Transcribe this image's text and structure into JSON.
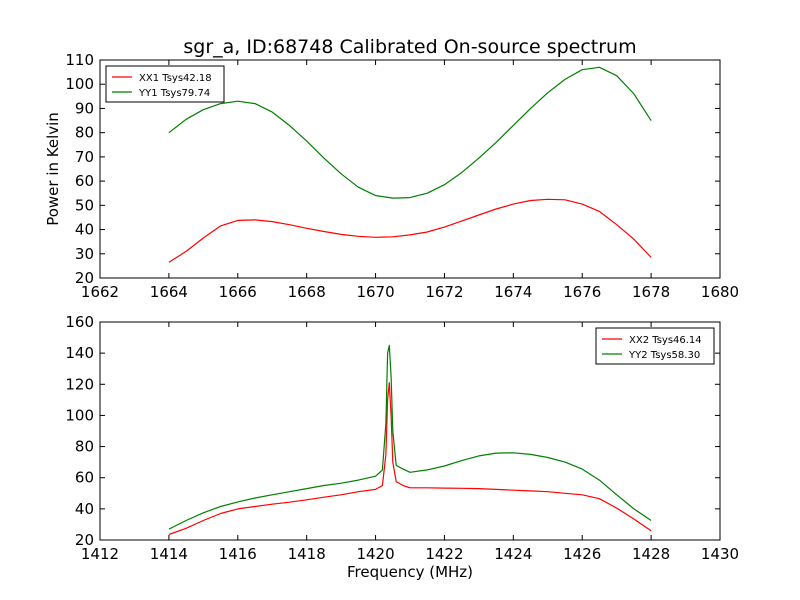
{
  "chart_data": [
    {
      "type": "line",
      "title": "sgr_a, ID:68748 Calibrated On-source spectrum",
      "xlabel": "",
      "ylabel": "Power in Kelvin",
      "xlim": [
        1662,
        1680
      ],
      "ylim": [
        20,
        110
      ],
      "xticks": [
        "1662",
        "1664",
        "1666",
        "1668",
        "1670",
        "1672",
        "1674",
        "1676",
        "1678",
        "1680"
      ],
      "yticks": [
        "20",
        "30",
        "40",
        "50",
        "60",
        "70",
        "80",
        "90",
        "100",
        "110"
      ],
      "legend_position": "top-left",
      "grid": false,
      "series": [
        {
          "name": "XX1 Tsys42.18",
          "color": "#ff0000",
          "x": [
            1664.0,
            1664.5,
            1665.0,
            1665.5,
            1666.0,
            1666.5,
            1667.0,
            1667.5,
            1668.0,
            1668.5,
            1669.0,
            1669.5,
            1670.0,
            1670.5,
            1671.0,
            1671.5,
            1672.0,
            1672.5,
            1673.0,
            1673.5,
            1674.0,
            1674.5,
            1675.0,
            1675.5,
            1676.0,
            1676.5,
            1677.0,
            1677.5,
            1678.0
          ],
          "y": [
            26.5,
            31.0,
            36.5,
            41.5,
            43.8,
            44.0,
            43.3,
            42.0,
            40.5,
            39.2,
            38.0,
            37.2,
            36.8,
            37.0,
            37.8,
            39.0,
            41.0,
            43.5,
            46.0,
            48.5,
            50.5,
            52.0,
            52.5,
            52.3,
            50.5,
            47.5,
            42.0,
            36.0,
            28.5
          ]
        },
        {
          "name": "YY1 Tsys79.74",
          "color": "#008000",
          "x": [
            1664.0,
            1664.5,
            1665.0,
            1665.5,
            1666.0,
            1666.5,
            1667.0,
            1667.5,
            1668.0,
            1668.5,
            1669.0,
            1669.5,
            1670.0,
            1670.5,
            1671.0,
            1671.5,
            1672.0,
            1672.5,
            1673.0,
            1673.5,
            1674.0,
            1674.5,
            1675.0,
            1675.5,
            1676.0,
            1676.5,
            1677.0,
            1677.5,
            1678.0
          ],
          "y": [
            80.0,
            85.5,
            89.5,
            92.0,
            93.0,
            92.0,
            88.5,
            83.0,
            76.5,
            69.5,
            63.0,
            57.5,
            54.0,
            53.0,
            53.2,
            55.0,
            58.5,
            63.5,
            69.5,
            76.0,
            83.0,
            90.0,
            96.5,
            102.0,
            106.0,
            107.0,
            103.5,
            96.0,
            85.0
          ]
        }
      ]
    },
    {
      "type": "line",
      "title": "",
      "xlabel": "Frequency (MHz)",
      "ylabel": "",
      "xlim": [
        1412,
        1430
      ],
      "ylim": [
        20,
        160
      ],
      "xticks": [
        "1412",
        "1414",
        "1416",
        "1418",
        "1420",
        "1422",
        "1424",
        "1426",
        "1428",
        "1430"
      ],
      "yticks": [
        "20",
        "40",
        "60",
        "80",
        "100",
        "120",
        "140",
        "160"
      ],
      "legend_position": "top-right",
      "grid": false,
      "series": [
        {
          "name": "XX2 Tsys46.14",
          "color": "#ff0000",
          "x": [
            1414.0,
            1414.5,
            1415.0,
            1415.5,
            1416.0,
            1416.5,
            1417.0,
            1417.5,
            1418.0,
            1418.5,
            1419.0,
            1419.5,
            1420.0,
            1420.2,
            1420.3,
            1420.35,
            1420.4,
            1420.45,
            1420.5,
            1420.6,
            1420.8,
            1421.0,
            1421.5,
            1422.0,
            1422.5,
            1423.0,
            1423.5,
            1424.0,
            1424.5,
            1425.0,
            1425.5,
            1426.0,
            1426.5,
            1427.0,
            1427.5,
            1428.0
          ],
          "y": [
            23.5,
            27.5,
            32.5,
            37.0,
            40.0,
            41.5,
            43.0,
            44.3,
            45.8,
            47.5,
            49.0,
            51.0,
            52.5,
            55.0,
            75.0,
            110.0,
            121.0,
            100.0,
            70.0,
            57.5,
            55.0,
            53.5,
            53.5,
            53.3,
            53.2,
            53.0,
            52.5,
            52.0,
            51.5,
            51.0,
            50.0,
            49.0,
            46.5,
            40.5,
            33.5,
            26.0
          ]
        },
        {
          "name": "YY2 Tsys58.30",
          "color": "#008000",
          "x": [
            1414.0,
            1414.5,
            1415.0,
            1415.5,
            1416.0,
            1416.5,
            1417.0,
            1417.5,
            1418.0,
            1418.5,
            1419.0,
            1419.5,
            1420.0,
            1420.2,
            1420.3,
            1420.35,
            1420.4,
            1420.45,
            1420.5,
            1420.6,
            1420.8,
            1421.0,
            1421.5,
            1422.0,
            1422.5,
            1423.0,
            1423.5,
            1424.0,
            1424.5,
            1425.0,
            1425.5,
            1426.0,
            1426.5,
            1427.0,
            1427.5,
            1428.0
          ],
          "y": [
            27.0,
            32.5,
            37.5,
            41.5,
            44.5,
            47.0,
            49.0,
            51.0,
            53.0,
            55.0,
            56.5,
            58.5,
            61.0,
            65.0,
            95.0,
            140.0,
            145.0,
            125.0,
            90.0,
            68.0,
            65.5,
            63.5,
            65.0,
            67.5,
            71.0,
            74.0,
            75.8,
            76.0,
            75.0,
            73.0,
            70.0,
            65.5,
            58.5,
            49.0,
            40.0,
            32.5
          ]
        }
      ]
    }
  ]
}
